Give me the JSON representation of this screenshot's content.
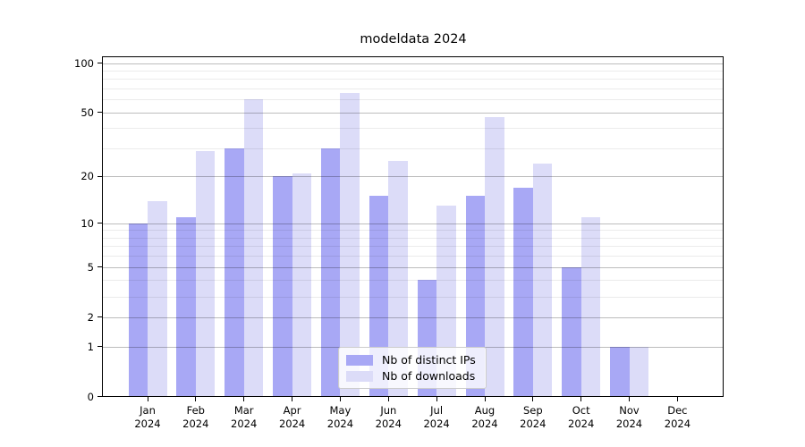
{
  "chart_data": {
    "type": "bar",
    "title": "modeldata 2024",
    "categories": [
      "Jan",
      "Feb",
      "Mar",
      "Apr",
      "May",
      "Jun",
      "Jul",
      "Aug",
      "Sep",
      "Oct",
      "Nov",
      "Dec"
    ],
    "category_year": "2024",
    "series": [
      {
        "name": "Nb of distinct IPs",
        "color": "#a8a8f5",
        "values": [
          10,
          11,
          30,
          20,
          30,
          15,
          4,
          15,
          17,
          5,
          1,
          0
        ]
      },
      {
        "name": "Nb of downloads",
        "color": "#dcdcf8",
        "values": [
          14,
          29,
          60,
          21,
          66,
          25,
          13,
          47,
          24,
          11,
          1,
          0
        ]
      }
    ],
    "yscale": "log(1+y)",
    "yticks": [
      0,
      1,
      2,
      5,
      10,
      20,
      50,
      100
    ],
    "yticks_minor": [
      3,
      4,
      6,
      7,
      8,
      9,
      30,
      40,
      60,
      70,
      80,
      90
    ],
    "ylim": [
      0,
      110
    ],
    "xlabel": "",
    "ylabel": "",
    "grid": "horizontal",
    "legend_position": "lower center"
  }
}
